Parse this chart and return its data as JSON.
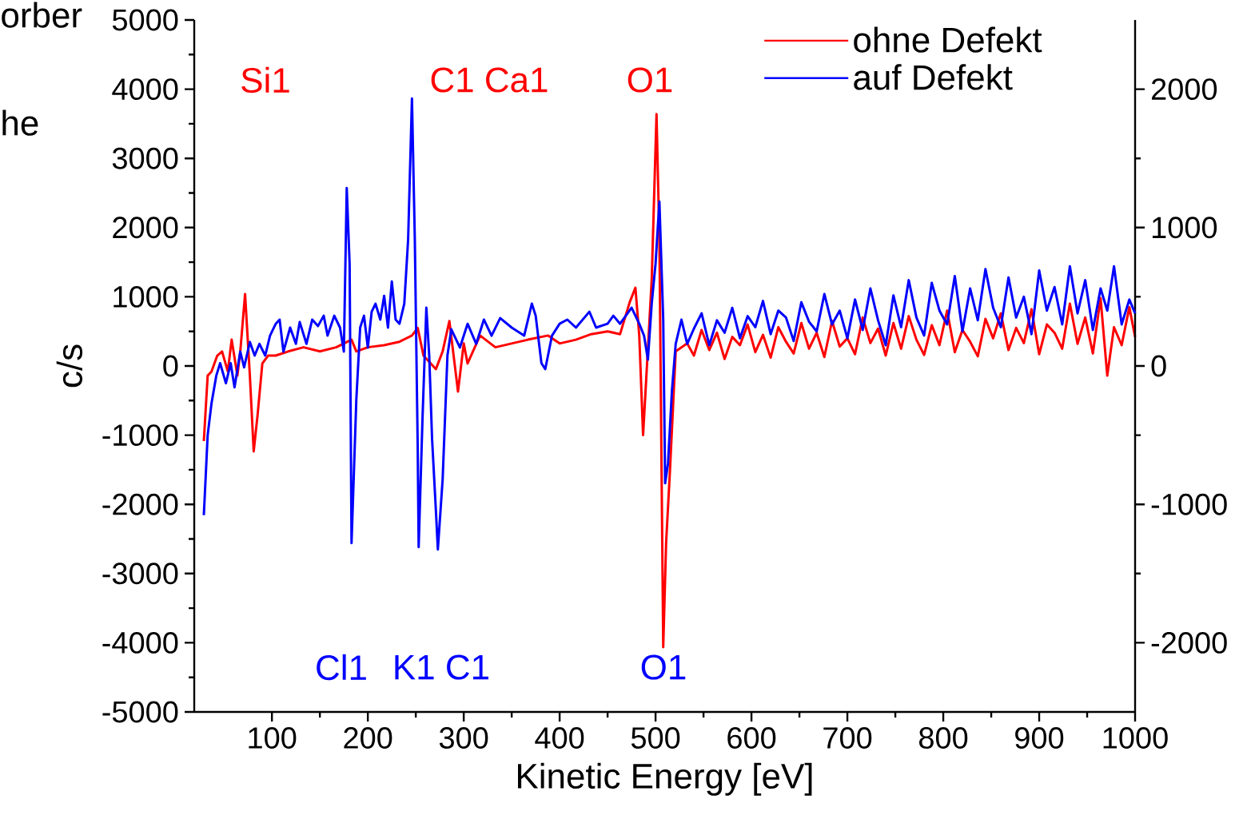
{
  "chart_data": {
    "type": "line",
    "xlabel": "Kinetic Energy [eV]",
    "ylabel": "c/s",
    "xlim": [
      19,
      1000
    ],
    "xticks": [
      100,
      200,
      300,
      400,
      500,
      600,
      700,
      800,
      900,
      1000
    ],
    "ylim": [
      -5000,
      5000
    ],
    "yticks": [
      -5000,
      -4000,
      -3000,
      -2000,
      -1000,
      0,
      1000,
      2000,
      3000,
      4000,
      5000
    ],
    "y2lim": [
      -2500,
      2500
    ],
    "y2ticks": [
      -2000,
      -1000,
      0,
      1000,
      2000
    ],
    "legend": "top right",
    "grid": false,
    "marker": "none",
    "line_style": "solid",
    "series": [
      {
        "name": "ohne Defekt",
        "color": "#ff0000",
        "x": [
          29,
          33,
          37,
          43,
          48,
          54,
          58,
          64,
          67,
          72,
          77,
          81,
          85,
          90,
          96,
          104,
          117,
          133,
          150,
          167,
          183,
          188,
          200,
          217,
          233,
          246,
          252,
          258,
          271,
          278,
          285,
          292,
          294,
          300,
          304,
          317,
          333,
          350,
          367,
          388,
          400,
          417,
          433,
          450,
          463,
          473,
          479,
          483,
          487,
          490,
          496,
          501,
          504,
          508,
          511,
          515,
          521,
          533,
          540,
          548,
          556,
          564,
          572,
          580,
          588,
          596,
          604,
          612,
          620,
          628,
          636,
          644,
          652,
          660,
          668,
          676,
          684,
          692,
          700,
          708,
          716,
          724,
          732,
          740,
          748,
          756,
          764,
          772,
          780,
          788,
          796,
          804,
          812,
          820,
          828,
          836,
          844,
          852,
          860,
          868,
          876,
          884,
          892,
          900,
          908,
          916,
          924,
          932,
          940,
          948,
          956,
          964,
          971,
          978,
          986,
          994,
          1000
        ],
        "values": [
          -1085,
          -140,
          -80,
          150,
          210,
          -80,
          380,
          -140,
          210,
          1040,
          -140,
          -1235,
          -715,
          35,
          150,
          150,
          210,
          270,
          210,
          270,
          380,
          210,
          270,
          300,
          350,
          440,
          550,
          150,
          -45,
          210,
          650,
          -140,
          -370,
          325,
          35,
          440,
          270,
          325,
          380,
          440,
          325,
          380,
          460,
          500,
          460,
          920,
          1130,
          440,
          -1000,
          -255,
          1250,
          3640,
          1830,
          -4065,
          -2560,
          -1520,
          210,
          325,
          150,
          520,
          230,
          480,
          100,
          420,
          300,
          600,
          200,
          450,
          120,
          560,
          350,
          180,
          620,
          250,
          480,
          130,
          650,
          280,
          400,
          170,
          700,
          330,
          540,
          150,
          620,
          250,
          720,
          380,
          160,
          590,
          300,
          800,
          200,
          520,
          350,
          140,
          680,
          400,
          760,
          230,
          550,
          330,
          820,
          170,
          600,
          480,
          250,
          900,
          320,
          700,
          180,
          980,
          -140,
          560,
          300,
          850,
          420
        ]
      },
      {
        "name": "auf Defekt",
        "color": "#0000ff",
        "axis": "y2",
        "x": [
          29,
          33,
          37,
          42,
          46,
          52,
          57,
          61,
          67,
          71,
          77,
          82,
          87,
          93,
          98,
          104,
          108,
          112,
          119,
          125,
          129,
          136,
          142,
          148,
          154,
          158,
          165,
          171,
          175,
          178,
          181,
          183,
          188,
          192,
          196,
          200,
          204,
          208,
          213,
          217,
          221,
          225,
          229,
          233,
          238,
          242,
          246,
          249,
          252,
          253,
          257,
          261,
          264,
          267,
          271,
          273,
          278,
          283,
          287,
          296,
          304,
          313,
          321,
          329,
          338,
          350,
          363,
          371,
          375,
          381,
          385,
          392,
          400,
          408,
          417,
          431,
          438,
          450,
          456,
          463,
          475,
          481,
          483,
          488,
          492,
          496,
          500,
          504,
          508,
          510,
          513,
          517,
          521,
          527,
          533,
          540,
          548,
          556,
          564,
          572,
          580,
          588,
          596,
          604,
          612,
          620,
          628,
          636,
          644,
          652,
          660,
          668,
          676,
          684,
          692,
          700,
          708,
          716,
          724,
          732,
          740,
          748,
          756,
          764,
          772,
          780,
          788,
          796,
          804,
          812,
          820,
          828,
          836,
          844,
          852,
          860,
          868,
          876,
          884,
          892,
          900,
          908,
          916,
          924,
          932,
          940,
          948,
          956,
          964,
          971,
          978,
          986,
          994,
          1000
        ],
        "values": [
          -1078,
          -500,
          -270,
          -70,
          20,
          -125,
          20,
          -155,
          104,
          -10,
          173,
          75,
          160,
          75,
          219,
          305,
          335,
          104,
          277,
          160,
          317,
          160,
          335,
          288,
          363,
          219,
          363,
          277,
          104,
          1286,
          738,
          -1280,
          -242,
          277,
          363,
          133,
          392,
          450,
          335,
          507,
          277,
          611,
          335,
          305,
          450,
          911,
          1932,
          911,
          -588,
          -1309,
          -380,
          421,
          75,
          -530,
          -1050,
          -1326,
          -819,
          75,
          265,
          133,
          305,
          160,
          335,
          219,
          346,
          277,
          219,
          450,
          363,
          20,
          -23,
          219,
          305,
          335,
          277,
          392,
          277,
          305,
          363,
          305,
          421,
          335,
          305,
          219,
          46,
          450,
          738,
          1188,
          335,
          -848,
          -704,
          -185,
          160,
          335,
          160,
          270,
          380,
          150,
          330,
          240,
          420,
          200,
          360,
          280,
          470,
          230,
          400,
          350,
          180,
          460,
          320,
          250,
          520,
          300,
          400,
          200,
          480,
          260,
          560,
          330,
          150,
          510,
          280,
          620,
          350,
          220,
          600,
          400,
          300,
          650,
          250,
          560,
          330,
          700,
          420,
          280,
          640,
          350,
          500,
          230,
          690,
          400,
          570,
          300,
          720,
          380,
          620,
          260,
          560,
          400,
          720,
          300,
          480,
          380
        ]
      }
    ],
    "annotations": [
      "Si1",
      "C1 Ca1",
      "O1",
      "Cl1",
      "K1 C1",
      "O1",
      "orber",
      "he"
    ]
  }
}
